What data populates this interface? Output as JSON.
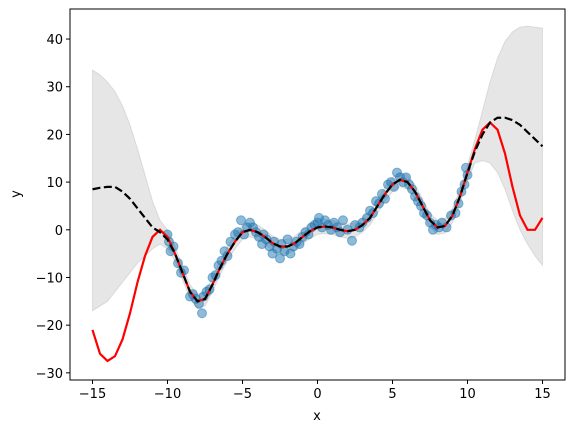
{
  "chart_data": {
    "type": "line",
    "xlabel": "x",
    "ylabel": "y",
    "xlim": [
      -16.5,
      16.5
    ],
    "ylim": [
      -31.5,
      46.3
    ],
    "xticks": [
      {
        "value": -15,
        "label": "−15"
      },
      {
        "value": -10,
        "label": "−10"
      },
      {
        "value": -5,
        "label": "−5"
      },
      0,
      5,
      10,
      15
    ],
    "yticks": [
      {
        "value": -30,
        "label": "−30"
      },
      {
        "value": -20,
        "label": "−20"
      },
      {
        "value": -10,
        "label": "−10"
      },
      0,
      10,
      20,
      30,
      40
    ],
    "x": [
      -15,
      -14.5,
      -14,
      -13.5,
      -13,
      -12.5,
      -12,
      -11.5,
      -11,
      -10.5,
      -10,
      -9.5,
      -9,
      -8.5,
      -8,
      -7.5,
      -7,
      -6.5,
      -6,
      -5.5,
      -5,
      -4.5,
      -4,
      -3.5,
      -3,
      -2.5,
      -2,
      -1.5,
      -1,
      -0.5,
      0,
      0.5,
      1,
      1.5,
      2,
      2.5,
      3,
      3.5,
      4,
      4.5,
      5,
      5.5,
      6,
      6.5,
      7,
      7.5,
      8,
      8.5,
      9,
      9.5,
      10,
      10.5,
      11,
      11.5,
      12,
      12.5,
      13,
      13.5,
      14,
      14.5,
      15
    ],
    "band": {
      "color": "#808080",
      "opacity": 0.2,
      "upper": [
        33.5,
        32.5,
        31,
        29,
        26,
        22,
        17,
        11.5,
        6,
        2,
        0,
        -3.5,
        -7.5,
        -11.5,
        -13.5,
        -13,
        -10,
        -6.5,
        -3.5,
        -1,
        1,
        1.5,
        1,
        0,
        -1.3,
        -2,
        -2,
        -1.3,
        0,
        1.2,
        2,
        2.2,
        2,
        1.5,
        1.2,
        1.5,
        2.5,
        4,
        6.5,
        9,
        11,
        12,
        11.5,
        9.5,
        6.5,
        3.5,
        2,
        2.3,
        4.5,
        8.5,
        13.5,
        19,
        25,
        31,
        36,
        39.5,
        41.5,
        42.5,
        42.7,
        42.5,
        42.3
      ],
      "lower": [
        -17,
        -16,
        -15,
        -13,
        -11,
        -9,
        -7,
        -5.5,
        -4,
        -3,
        -4,
        -6.5,
        -10.5,
        -14.5,
        -16.5,
        -16,
        -13,
        -9.5,
        -6.5,
        -4,
        -2,
        -1.5,
        -2,
        -3,
        -4.3,
        -5,
        -5,
        -4.3,
        -3,
        -1.8,
        -1,
        -0.8,
        -1,
        -1.5,
        -1.8,
        -1.5,
        -0.5,
        1,
        3.5,
        6,
        8,
        9,
        8.5,
        6.5,
        3.5,
        0.5,
        -1,
        -0.7,
        1.5,
        5.5,
        10.5,
        14,
        14.5,
        14,
        12,
        8.5,
        4,
        0,
        -3,
        -5.5,
        -7.5
      ]
    },
    "scatter": {
      "color": "#1f77b4",
      "opacity": 0.5,
      "x": [
        -10,
        -9.9,
        -9.8,
        -9.6,
        -9.3,
        -9.1,
        -8.9,
        -8.5,
        -8.3,
        -8.1,
        -7.9,
        -7.7,
        -7.6,
        -7.4,
        -7.2,
        -7,
        -6.8,
        -6.6,
        -6.4,
        -6.2,
        -6,
        -5.8,
        -5.5,
        -5.3,
        -5.1,
        -4.9,
        -4.7,
        -4.5,
        -4.3,
        -4.1,
        -3.9,
        -3.7,
        -3.6,
        -3.4,
        -3.2,
        -3,
        -2.9,
        -2.7,
        -2.5,
        -2.4,
        -2.2,
        -2,
        -1.8,
        -1.6,
        -1.4,
        -1.2,
        -1,
        -0.8,
        -0.6,
        -0.4,
        -0.2,
        0,
        0.1,
        0.3,
        0.5,
        0.7,
        0.9,
        1.1,
        1.3,
        1.5,
        1.7,
        2,
        2.3,
        2.5,
        2.8,
        3,
        3.3,
        3.5,
        3.7,
        3.9,
        4.1,
        4.3,
        4.5,
        4.7,
        4.9,
        5.1,
        5.3,
        5.5,
        5.7,
        5.9,
        6.1,
        6.3,
        6.5,
        6.7,
        6.9,
        7.1,
        7.3,
        7.5,
        7.7,
        7.9,
        8.1,
        8.3,
        8.6,
        8.9,
        9.2,
        9.4,
        9.6,
        9.8,
        9.9,
        10
      ],
      "y": [
        -1,
        -2.5,
        -4.5,
        -3.5,
        -7,
        -9,
        -8.5,
        -14,
        -13.5,
        -14.5,
        -15.5,
        -17.5,
        -14,
        -13,
        -12.5,
        -10,
        -9.5,
        -7.5,
        -6.5,
        -4.5,
        -5.5,
        -2.5,
        -1,
        -0.5,
        2,
        -1,
        0.5,
        1.5,
        0.5,
        -0.5,
        -1.5,
        -3,
        -1,
        -2,
        -3.5,
        -5,
        -2.5,
        -4,
        -6,
        -3,
        -4.5,
        -2,
        -5,
        -3.5,
        -2.5,
        -3,
        -1.5,
        -0.5,
        -1,
        0.5,
        1,
        1.5,
        2.5,
        0.5,
        2,
        1,
        0,
        1.5,
        0.5,
        -0.5,
        2,
        0,
        -2.3,
        1,
        0.5,
        1.5,
        2.5,
        4,
        3.5,
        6,
        5.5,
        7.5,
        6.5,
        9.5,
        10,
        9,
        12,
        11,
        10,
        11,
        9.5,
        8.5,
        7,
        6,
        5,
        3.5,
        3,
        1.5,
        0,
        1,
        0.5,
        1.5,
        0.5,
        3,
        3.5,
        5.5,
        8,
        9.5,
        13,
        11.5
      ]
    },
    "series": [
      {
        "color": "#ff0000",
        "linestyle": "solid",
        "values": [
          -21,
          -26,
          -27.5,
          -26.5,
          -23,
          -17.5,
          -11,
          -5.5,
          -1.5,
          0,
          -1.5,
          -5,
          -9,
          -13,
          -15,
          -14.5,
          -11.5,
          -8,
          -5,
          -2.5,
          -0.5,
          0,
          -0.5,
          -1.5,
          -2.8,
          -3.5,
          -3.5,
          -2.8,
          -1.5,
          -0.3,
          0.5,
          0.7,
          0.5,
          0,
          -0.3,
          0,
          1,
          2.5,
          5,
          7.5,
          9.5,
          10.5,
          10,
          8,
          5,
          2,
          0.5,
          0.8,
          3,
          7,
          12,
          17,
          21,
          22.5,
          21,
          16,
          9,
          3,
          0,
          0,
          2.5
        ]
      },
      {
        "color": "#000000",
        "linestyle": "dashed",
        "values": [
          8.5,
          8.8,
          9,
          9,
          8,
          6.5,
          4.5,
          2.5,
          0.5,
          -0.5,
          -2,
          -5,
          -9,
          -13,
          -15,
          -14.5,
          -11.5,
          -8,
          -5,
          -2.5,
          -0.5,
          0,
          -0.5,
          -1.5,
          -2.8,
          -3.5,
          -3.5,
          -2.8,
          -1.5,
          -0.3,
          0.5,
          0.7,
          0.5,
          0,
          -0.3,
          0,
          1,
          2.5,
          5,
          7.5,
          9.5,
          10.5,
          10,
          8,
          5,
          2,
          0.5,
          0.8,
          3,
          7,
          12,
          16.5,
          20,
          22.5,
          23.5,
          23.5,
          23,
          22,
          20.5,
          19,
          17.5
        ]
      }
    ]
  }
}
